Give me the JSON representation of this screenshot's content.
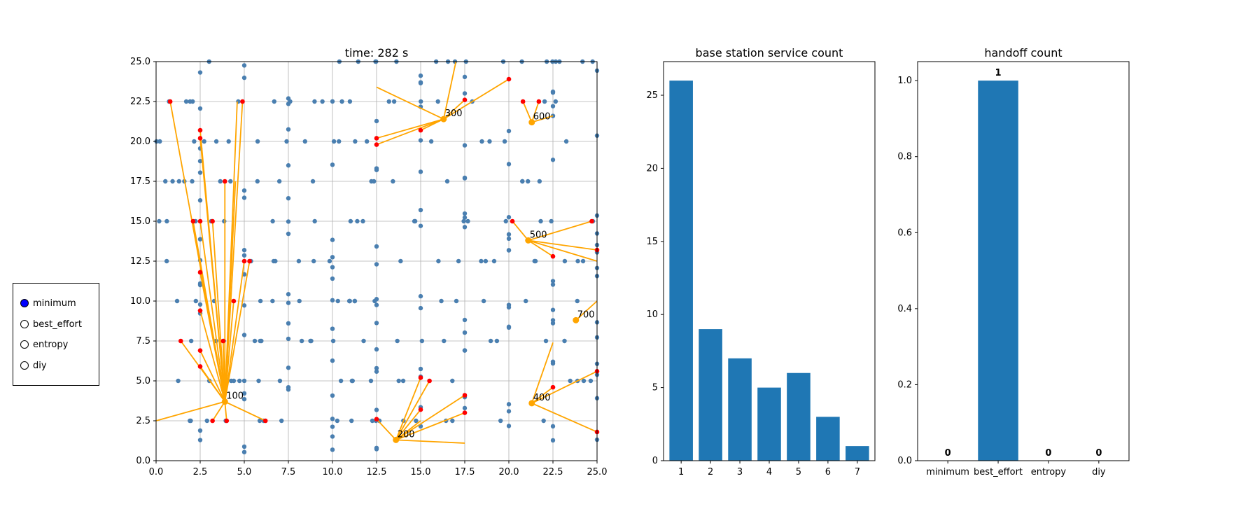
{
  "radio": {
    "options": [
      "minimum",
      "best_effort",
      "entropy",
      "diy"
    ],
    "selected": "minimum",
    "selected_color": "#0000ff"
  },
  "colors": {
    "bar": "#1f77b4",
    "node": "#4a7fb0",
    "active_node": "#ff0000",
    "link": "#ffa500",
    "grid": "#b0b0b0"
  },
  "chart_data": [
    {
      "type": "scatter",
      "title": "time: 282 s",
      "xlim": [
        0,
        25
      ],
      "ylim": [
        0,
        25
      ],
      "xticks": [
        "0.0",
        "2.5",
        "5.0",
        "7.5",
        "10.0",
        "12.5",
        "15.0",
        "17.5",
        "20.0",
        "22.5",
        "25.0"
      ],
      "yticks": [
        "0.0",
        "2.5",
        "5.0",
        "7.5",
        "10.0",
        "12.5",
        "15.0",
        "17.5",
        "20.0",
        "22.5",
        "25.0"
      ],
      "grid": true,
      "base_stations": [
        {
          "label": "100",
          "x": 3.9,
          "y": 3.7
        },
        {
          "label": "200",
          "x": 13.6,
          "y": 1.3
        },
        {
          "label": "300",
          "x": 16.3,
          "y": 21.4
        },
        {
          "label": "400",
          "x": 21.3,
          "y": 3.6
        },
        {
          "label": "500",
          "x": 21.1,
          "y": 13.8
        },
        {
          "label": "600",
          "x": 21.3,
          "y": 21.2
        },
        {
          "label": "700",
          "x": 23.8,
          "y": 8.8
        }
      ],
      "links": [
        [
          0.8,
          22.5,
          3.9,
          3.7
        ],
        [
          2.5,
          20.7,
          3.9,
          3.7
        ],
        [
          2.5,
          20.2,
          3.9,
          3.7
        ],
        [
          4.9,
          22.5,
          3.9,
          3.7
        ],
        [
          4.6,
          22.5,
          3.9,
          3.7
        ],
        [
          3.9,
          17.5,
          3.9,
          3.7
        ],
        [
          4.5,
          17.5,
          3.9,
          3.7
        ],
        [
          2.1,
          15.0,
          3.9,
          3.7
        ],
        [
          3.2,
          15.0,
          3.9,
          3.7
        ],
        [
          2.5,
          15.0,
          3.9,
          3.7
        ],
        [
          5.0,
          12.5,
          3.9,
          3.7
        ],
        [
          5.3,
          12.5,
          3.9,
          3.7
        ],
        [
          2.5,
          11.8,
          3.9,
          3.7
        ],
        [
          4.4,
          10.0,
          3.9,
          3.7
        ],
        [
          2.5,
          9.4,
          3.9,
          3.7
        ],
        [
          1.4,
          7.5,
          3.9,
          3.7
        ],
        [
          3.8,
          7.5,
          3.9,
          3.7
        ],
        [
          2.5,
          6.9,
          3.9,
          3.7
        ],
        [
          2.5,
          5.9,
          3.9,
          3.7
        ],
        [
          0.0,
          2.5,
          3.9,
          3.7
        ],
        [
          3.2,
          2.5,
          3.9,
          3.7
        ],
        [
          4.0,
          2.5,
          3.9,
          3.7
        ],
        [
          6.2,
          2.5,
          3.9,
          3.7
        ],
        [
          12.5,
          2.6,
          13.6,
          1.3
        ],
        [
          15.0,
          5.2,
          13.6,
          1.3
        ],
        [
          15.5,
          5.0,
          13.6,
          1.3
        ],
        [
          15.0,
          3.2,
          13.6,
          1.3
        ],
        [
          17.5,
          4.1,
          13.6,
          1.3
        ],
        [
          17.5,
          3.0,
          13.6,
          1.3
        ],
        [
          17.5,
          1.1,
          13.6,
          1.3
        ],
        [
          15.0,
          2.5,
          13.6,
          1.3
        ],
        [
          12.5,
          23.4,
          16.3,
          21.4
        ],
        [
          12.5,
          20.2,
          16.3,
          21.4
        ],
        [
          12.5,
          19.8,
          16.3,
          21.4
        ],
        [
          15.0,
          20.7,
          16.3,
          21.4
        ],
        [
          17.5,
          22.6,
          16.3,
          21.4
        ],
        [
          17.0,
          25.0,
          16.3,
          21.4
        ],
        [
          20.0,
          23.9,
          16.3,
          21.4
        ],
        [
          25.0,
          5.6,
          21.3,
          3.6
        ],
        [
          25.0,
          1.8,
          21.3,
          3.6
        ],
        [
          22.5,
          4.6,
          21.3,
          3.6
        ],
        [
          22.5,
          7.4,
          21.3,
          3.6
        ],
        [
          20.2,
          15.0,
          21.1,
          13.8
        ],
        [
          24.7,
          15.0,
          21.1,
          13.8
        ],
        [
          25.0,
          13.2,
          21.1,
          13.8
        ],
        [
          25.0,
          12.5,
          21.1,
          13.8
        ],
        [
          22.5,
          12.8,
          21.1,
          13.8
        ],
        [
          20.8,
          22.5,
          21.3,
          21.2
        ],
        [
          21.7,
          22.5,
          21.3,
          21.2
        ],
        [
          22.5,
          21.6,
          21.3,
          21.2
        ],
        [
          25.0,
          10.0,
          23.8,
          8.8
        ]
      ],
      "active_users": [
        [
          0.8,
          22.5
        ],
        [
          2.5,
          20.7
        ],
        [
          2.5,
          20.2
        ],
        [
          4.9,
          22.5
        ],
        [
          3.9,
          17.5
        ],
        [
          2.1,
          15.0
        ],
        [
          3.2,
          15.0
        ],
        [
          2.5,
          15.0
        ],
        [
          5.0,
          12.5
        ],
        [
          5.3,
          12.5
        ],
        [
          2.5,
          11.8
        ],
        [
          4.4,
          10.0
        ],
        [
          2.5,
          9.4
        ],
        [
          1.4,
          7.5
        ],
        [
          3.8,
          7.5
        ],
        [
          2.5,
          6.9
        ],
        [
          2.5,
          5.9
        ],
        [
          3.2,
          2.5
        ],
        [
          4.0,
          2.5
        ],
        [
          6.2,
          2.5
        ],
        [
          12.5,
          2.6
        ],
        [
          15.0,
          5.2
        ],
        [
          15.5,
          5.0
        ],
        [
          15.0,
          3.2
        ],
        [
          17.5,
          4.1
        ],
        [
          17.5,
          3.0
        ],
        [
          12.5,
          20.2
        ],
        [
          12.5,
          19.8
        ],
        [
          15.0,
          20.7
        ],
        [
          17.5,
          22.6
        ],
        [
          20.0,
          23.9
        ],
        [
          25.0,
          5.6
        ],
        [
          25.0,
          1.8
        ],
        [
          22.5,
          4.6
        ],
        [
          20.2,
          15.0
        ],
        [
          24.7,
          15.0
        ],
        [
          25.0,
          13.2
        ],
        [
          22.5,
          12.8
        ],
        [
          20.8,
          22.5
        ],
        [
          21.7,
          22.5
        ]
      ],
      "horizontal_streets_y": [
        2.5,
        5.0,
        7.5,
        10.0,
        12.5,
        15.0,
        17.5,
        20.0,
        22.5,
        25.0
      ],
      "vertical_streets_x": [
        2.5,
        5.0,
        7.5,
        10.0,
        12.5,
        15.0,
        17.5,
        20.0,
        22.5,
        25.0
      ]
    },
    {
      "type": "bar",
      "title": "base station service count",
      "categories": [
        "1",
        "2",
        "3",
        "4",
        "5",
        "6",
        "7"
      ],
      "values": [
        26,
        9,
        7,
        5,
        6,
        3,
        1
      ],
      "ylim": [
        0,
        27.3
      ],
      "yticks": [
        0,
        5,
        10,
        15,
        20,
        25
      ]
    },
    {
      "type": "bar",
      "title": "handoff count",
      "categories": [
        "minimum",
        "best_effort",
        "entropy",
        "diy"
      ],
      "values": [
        0,
        1,
        0,
        0
      ],
      "data_labels": [
        "0",
        "1",
        "0",
        "0"
      ],
      "ylim": [
        0,
        1.05
      ],
      "yticks": [
        "0.0",
        "0.2",
        "0.4",
        "0.6",
        "0.8",
        "1.0"
      ]
    }
  ]
}
